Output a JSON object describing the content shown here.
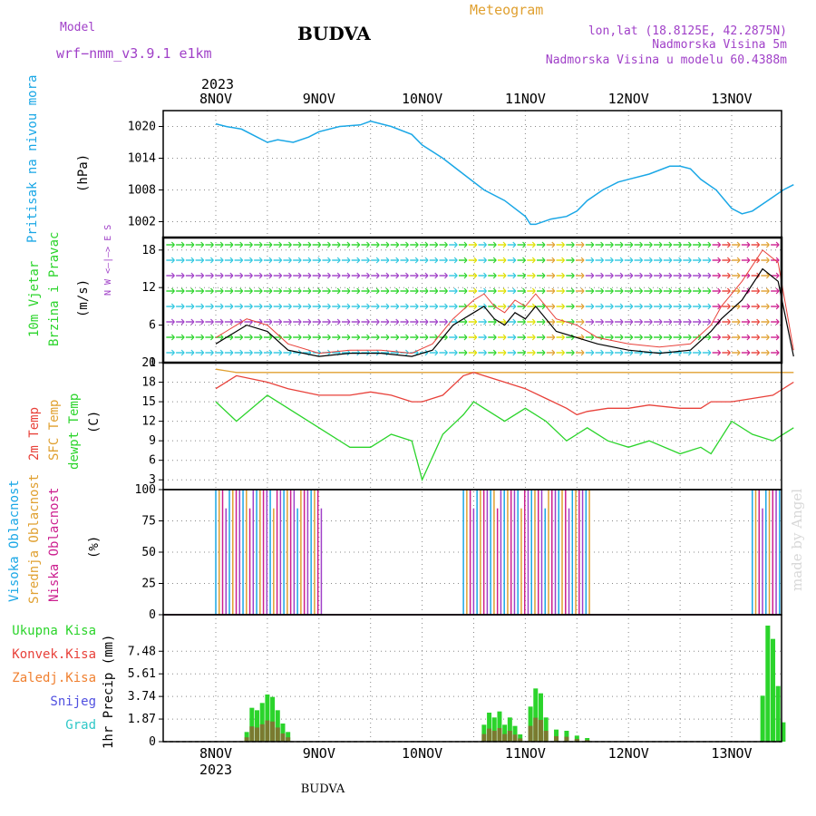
{
  "header": {
    "model_label": "Model",
    "model_name": "wrf−nmm_v3.9.1 e1km",
    "title": "BUDVA",
    "meteogram_label": "Meteogram",
    "coords": "lon,lat (18.8125E, 42.2875N)",
    "elevation": "Nadmorska Visina 5m",
    "model_elevation": "Nadmorska Visina u modelu 60.4388m",
    "footer": "BUDVA",
    "credit": "made by Angel"
  },
  "colors": {
    "pressure": "#1aa7e6",
    "temp2m": "#e8413a",
    "sfc": "#e0a030",
    "dewpt": "#2bd42b",
    "cloud_high": "#1aa7e6",
    "cloud_mid": "#e0a030",
    "cloud_low": "#cc1f8f",
    "precip_total": "#2bd42b",
    "precip_conv": "#e8413a",
    "purple_text": "#a040c8",
    "orange_text": "#e0a030"
  },
  "time_axis": {
    "top_year": "2023",
    "bottom_year": "2023",
    "ticks": [
      "8NOV",
      "9NOV",
      "10NOV",
      "11NOV",
      "12NOV",
      "13NOV"
    ]
  },
  "panels": {
    "pressure": {
      "label": "Pritisak na nivou mora",
      "unit": "(hPa)"
    },
    "wind": {
      "label1": "10m Vjetar",
      "label2": "Brzina i Pravac",
      "unit": "(m/s)",
      "compass": "N  W <—|—> E  S"
    },
    "temp": {
      "label_2m": "2m Temp",
      "label_sfc": "SFC Temp",
      "label_dew": "dewpt Temp",
      "unit": "(C)"
    },
    "cloud": {
      "label_high": "Visoka Oblacnost",
      "label_mid": "Srednja Oblacnost",
      "label_low": "Niska Oblacnost",
      "unit": "(%)"
    },
    "precip": {
      "unit": "1hr Precip (mm)",
      "legend": [
        "Ukupna Kisa",
        "Konvek.Kisa",
        "Zaledj.Kisa",
        "Snijeg",
        "Grad"
      ],
      "legend_colors": [
        "#2bd42b",
        "#e8413a",
        "#f08030",
        "#5050e0",
        "#30c8c8"
      ]
    }
  },
  "chart_data": [
    {
      "type": "line",
      "title": "Pritisak na nivou mora",
      "ylabel": "(hPa)",
      "ylim": [
        999,
        1023
      ],
      "yticks": [
        1002,
        1008,
        1014,
        1020
      ],
      "x_days": [
        0,
        0.1,
        0.25,
        0.4,
        0.5,
        0.6,
        0.75,
        0.9,
        1.0,
        1.2,
        1.4,
        1.5,
        1.7,
        1.9,
        2.0,
        2.2,
        2.4,
        2.6,
        2.8,
        3.0,
        3.05,
        3.1,
        3.25,
        3.4,
        3.5,
        3.6,
        3.75,
        3.9,
        4.0,
        4.2,
        4.4,
        4.5,
        4.6,
        4.7,
        4.85,
        5.0,
        5.1,
        5.2,
        5.35,
        5.5,
        5.6
      ],
      "series": [
        {
          "values": [
            1020.5,
            1020,
            1019.5,
            1018,
            1017,
            1017.5,
            1017,
            1018,
            1019,
            1020,
            1020.3,
            1021,
            1020,
            1018.5,
            1016.5,
            1014,
            1011,
            1008,
            1006,
            1003,
            1001.5,
            1001.5,
            1002.5,
            1003,
            1004,
            1006,
            1008,
            1009.5,
            1010,
            1011,
            1012.5,
            1012.5,
            1012,
            1010,
            1008,
            1004.5,
            1003.5,
            1004,
            1006,
            1008,
            1009
          ]
        }
      ]
    },
    {
      "type": "line",
      "title": "10m Vjetar Brzina i Pravac",
      "ylabel": "(m/s)",
      "ylim": [
        0,
        20
      ],
      "yticks": [
        0,
        6,
        12,
        18
      ],
      "x_days": [
        0,
        0.1,
        0.3,
        0.5,
        0.7,
        1.0,
        1.3,
        1.6,
        1.9,
        2.1,
        2.3,
        2.5,
        2.6,
        2.7,
        2.8,
        2.9,
        3.0,
        3.1,
        3.3,
        3.5,
        3.7,
        4.0,
        4.3,
        4.6,
        4.8,
        4.9,
        5.1,
        5.3,
        5.45,
        5.6
      ],
      "series": [
        {
          "name": "speed",
          "values": [
            3,
            4,
            6,
            5,
            2,
            1,
            1.5,
            1.5,
            1,
            2,
            6,
            8,
            9,
            7,
            6,
            8,
            7,
            9,
            5,
            4,
            3,
            2,
            1.5,
            2,
            5,
            7,
            10,
            15,
            13,
            1
          ]
        },
        {
          "name": "gust",
          "values": [
            4,
            5,
            7,
            6,
            3,
            1.5,
            2,
            2,
            1.5,
            3,
            7,
            10,
            11,
            9,
            8,
            10,
            9,
            11,
            7,
            6,
            4,
            3,
            2.5,
            3,
            6,
            9,
            13,
            18,
            16,
            2
          ]
        }
      ]
    },
    {
      "type": "line",
      "title": "2m Temp / SFC Temp / dewpt Temp",
      "ylabel": "(C)",
      "ylim": [
        1.5,
        21
      ],
      "yticks": [
        3,
        6,
        9,
        12,
        15,
        18,
        21
      ],
      "x_days": [
        0,
        0.2,
        0.5,
        0.7,
        1.0,
        1.3,
        1.5,
        1.7,
        1.9,
        2.0,
        2.2,
        2.4,
        2.5,
        2.6,
        2.8,
        3.0,
        3.2,
        3.4,
        3.5,
        3.6,
        3.8,
        4.0,
        4.2,
        4.5,
        4.7,
        4.8,
        5.0,
        5.2,
        5.4,
        5.6
      ],
      "series": [
        {
          "name": "2m Temp",
          "values": [
            17,
            19,
            18,
            17,
            16,
            16,
            16.5,
            16,
            15,
            15,
            16,
            19,
            19.5,
            19,
            18,
            17,
            15.5,
            14,
            13,
            13.5,
            14,
            14,
            14.5,
            14,
            14,
            15,
            15,
            15.5,
            16,
            18
          ]
        },
        {
          "name": "SFC Temp",
          "values": [
            20,
            19.5,
            19.5,
            19.5,
            19.5,
            19.5,
            19.5,
            19.5,
            19.5,
            19.5,
            19.5,
            19.5,
            19.5,
            19.5,
            19.5,
            19.5,
            19.5,
            19.5,
            19.5,
            19.5,
            19.5,
            19.5,
            19.5,
            19.5,
            19.5,
            19.5,
            19.5,
            19.5,
            19.5,
            19.5
          ]
        },
        {
          "name": "dewpt Temp",
          "values": [
            15,
            12,
            16,
            14,
            11,
            8,
            8,
            10,
            9,
            3,
            10,
            13,
            15,
            14,
            12,
            14,
            12,
            9,
            10,
            11,
            9,
            8,
            9,
            7,
            8,
            7,
            12,
            10,
            9,
            11
          ]
        }
      ]
    },
    {
      "type": "bar",
      "title": "Visoka / Srednja / Niska Oblacnost",
      "ylabel": "(%)",
      "ylim": [
        0,
        100
      ],
      "yticks": [
        0,
        25,
        50,
        75,
        100
      ],
      "segments": [
        {
          "from_day": 0,
          "to_day": 1.05,
          "level": 100
        },
        {
          "from_day": 2.4,
          "to_day": 3.65,
          "level": 100
        },
        {
          "from_day": 5.2,
          "to_day": 5.6,
          "level": 100
        }
      ]
    },
    {
      "type": "bar",
      "title": "1hr Precip",
      "ylabel": "1hr Precip (mm)",
      "ylim": [
        0,
        10.5
      ],
      "yticks": [
        0,
        1.87,
        3.74,
        5.61,
        7.48
      ],
      "x_days": [
        0.3,
        0.35,
        0.4,
        0.45,
        0.5,
        0.55,
        0.6,
        0.65,
        0.7,
        2.6,
        2.65,
        2.7,
        2.75,
        2.8,
        2.85,
        2.9,
        2.95,
        3.05,
        3.1,
        3.15,
        3.2,
        3.3,
        3.4,
        3.5,
        3.6,
        5.3,
        5.35,
        5.4,
        5.45,
        5.5
      ],
      "values": [
        0.8,
        2.8,
        2.6,
        3.2,
        3.9,
        3.7,
        2.6,
        1.5,
        0.8,
        1.4,
        2.4,
        2.0,
        2.5,
        1.4,
        2.0,
        1.3,
        0.6,
        2.9,
        4.4,
        4.0,
        2.0,
        1.0,
        0.9,
        0.5,
        0.3,
        3.8,
        9.6,
        8.5,
        4.6,
        1.6
      ]
    }
  ]
}
